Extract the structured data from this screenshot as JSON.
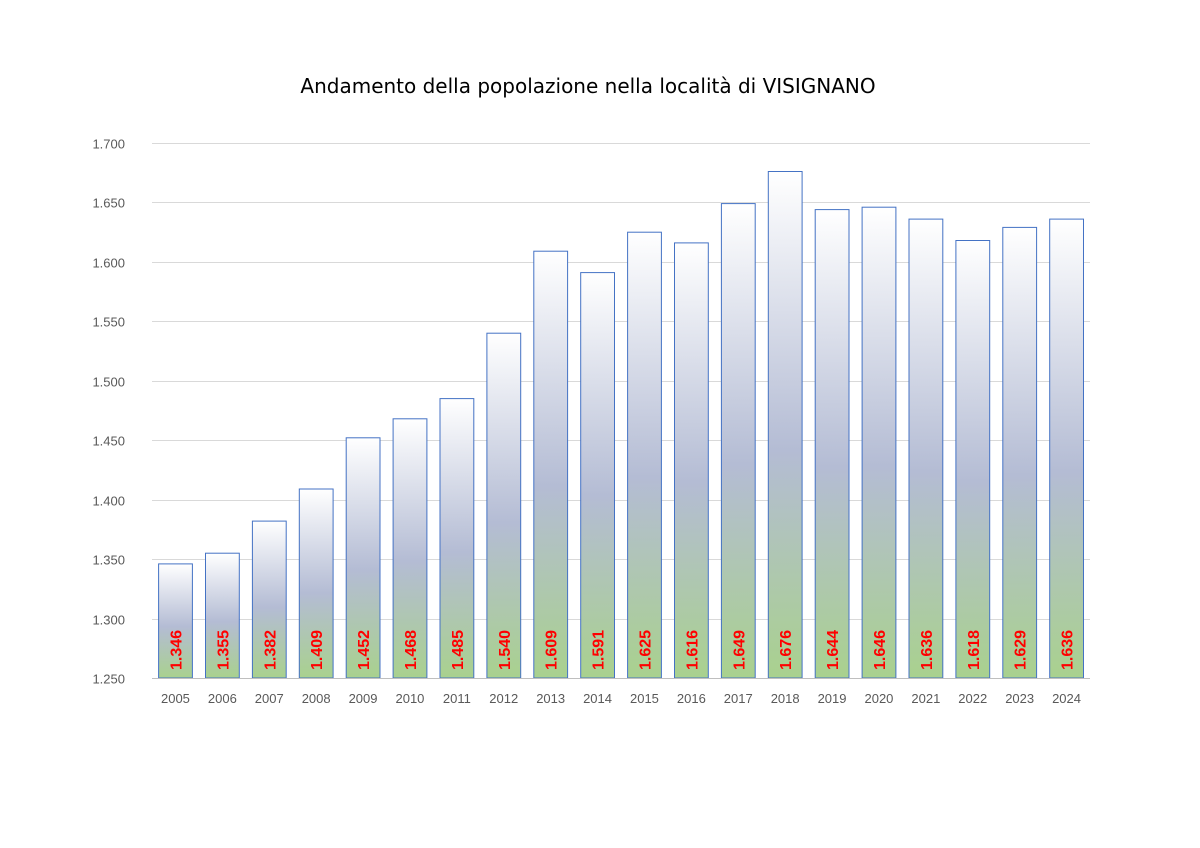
{
  "chart_data": {
    "type": "bar",
    "title": "Andamento della popolazione nella località di VISIGNANO",
    "xlabel": "",
    "ylabel": "",
    "categories": [
      "2005",
      "2006",
      "2007",
      "2008",
      "2009",
      "2010",
      "2011",
      "2012",
      "2013",
      "2014",
      "2015",
      "2016",
      "2017",
      "2018",
      "2019",
      "2020",
      "2021",
      "2022",
      "2023",
      "2024"
    ],
    "values": [
      1346,
      1355,
      1382,
      1409,
      1452,
      1468,
      1485,
      1540,
      1609,
      1591,
      1625,
      1616,
      1649,
      1676,
      1644,
      1646,
      1636,
      1618,
      1629,
      1636
    ],
    "value_labels": [
      "1.346",
      "1.355",
      "1.382",
      "1.409",
      "1.452",
      "1.468",
      "1.485",
      "1.540",
      "1.609",
      "1.591",
      "1.625",
      "1.616",
      "1.649",
      "1.676",
      "1.644",
      "1.646",
      "1.636",
      "1.618",
      "1.629",
      "1.636"
    ],
    "ylim": [
      1250,
      1700
    ],
    "yticks": [
      1250,
      1300,
      1350,
      1400,
      1450,
      1500,
      1550,
      1600,
      1650,
      1700
    ],
    "ytick_labels": [
      "1.250",
      "1.300",
      "1.350",
      "1.400",
      "1.450",
      "1.500",
      "1.550",
      "1.600",
      "1.650",
      "1.700"
    ],
    "grid": true,
    "legend": "none",
    "colors": {
      "bar_top": "#ffffff",
      "bar_mid": "#b4bcd4",
      "bar_bottom": "#a9d18e",
      "bar_outline": "#4472c4",
      "value_label": "#ff0000"
    }
  }
}
